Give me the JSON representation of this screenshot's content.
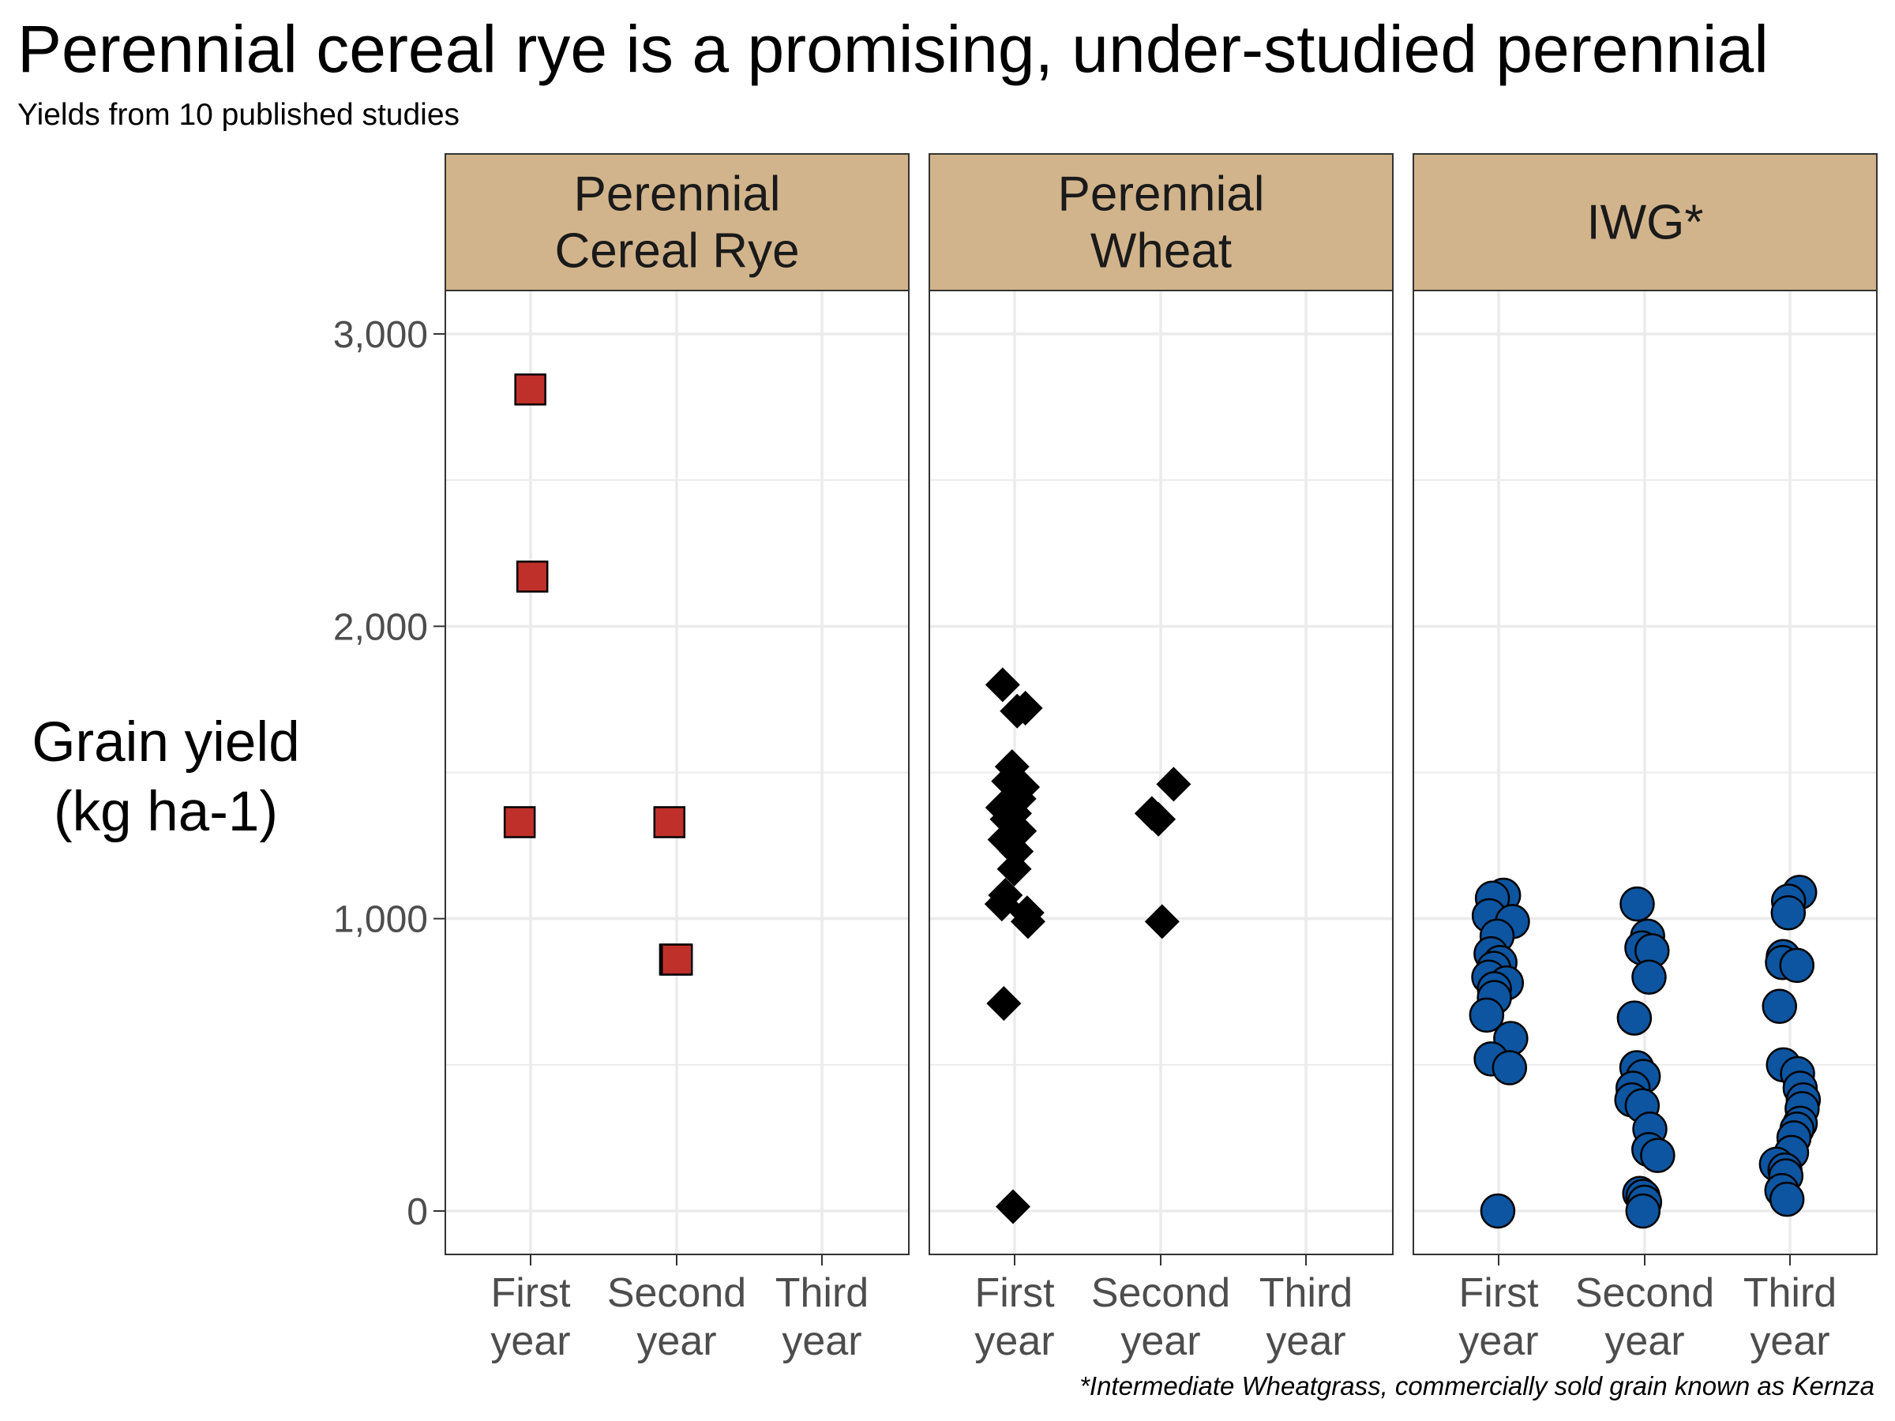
{
  "title": "Perennial cereal rye is a promising, under-studied perennial",
  "subtitle": "Yields from 10 published studies",
  "caption": "*Intermediate Wheatgrass, commercially sold grain known as Kernza",
  "colors": {
    "strip_fill": "#d2b48c",
    "rye": "#c0302a",
    "wheat": "#000000",
    "iwg": "#0d55a0",
    "grid": "#ebebeb",
    "border": "#333333",
    "tick_text": "#4d4d4d"
  },
  "chart_data": {
    "type": "scatter",
    "facet": "crop",
    "ylabel_lines": [
      "Grain yield",
      "(kg ha-1)"
    ],
    "ylim": [
      -150,
      3500
    ],
    "y_ticks": [
      0,
      1000,
      2000,
      3000
    ],
    "y_tick_labels": [
      "0",
      "1,000",
      "2,000",
      "3,000"
    ],
    "grid": true,
    "x_categories": [
      {
        "line1": "First",
        "line2": "year"
      },
      {
        "line1": "Second",
        "line2": "year"
      },
      {
        "line1": "Third",
        "line2": "year"
      }
    ],
    "panels": [
      {
        "strip_lines": [
          "Perennial",
          "Cereal Rye"
        ],
        "shape": "square",
        "color_key": "rye",
        "points": [
          {
            "x": "First year",
            "y": 2810
          },
          {
            "x": "First year",
            "y": 2170
          },
          {
            "x": "First year",
            "y": 1330
          },
          {
            "x": "Second year",
            "y": 1330
          },
          {
            "x": "Second year",
            "y": 860
          },
          {
            "x": "Second year",
            "y": 860
          }
        ]
      },
      {
        "strip_lines": [
          "Perennial",
          "Wheat"
        ],
        "shape": "diamond",
        "color_key": "wheat",
        "points": [
          {
            "x": "First year",
            "y": 1800
          },
          {
            "x": "First year",
            "y": 1720
          },
          {
            "x": "First year",
            "y": 1710
          },
          {
            "x": "First year",
            "y": 1520
          },
          {
            "x": "First year",
            "y": 1470
          },
          {
            "x": "First year",
            "y": 1450
          },
          {
            "x": "First year",
            "y": 1410
          },
          {
            "x": "First year",
            "y": 1380
          },
          {
            "x": "First year",
            "y": 1360
          },
          {
            "x": "First year",
            "y": 1340
          },
          {
            "x": "First year",
            "y": 1300
          },
          {
            "x": "First year",
            "y": 1270
          },
          {
            "x": "First year",
            "y": 1230
          },
          {
            "x": "First year",
            "y": 1170
          },
          {
            "x": "First year",
            "y": 1080
          },
          {
            "x": "First year",
            "y": 1050
          },
          {
            "x": "First year",
            "y": 1020
          },
          {
            "x": "First year",
            "y": 990
          },
          {
            "x": "First year",
            "y": 710
          },
          {
            "x": "First year",
            "y": 15
          },
          {
            "x": "Second year",
            "y": 1460
          },
          {
            "x": "Second year",
            "y": 1360
          },
          {
            "x": "Second year",
            "y": 1340
          },
          {
            "x": "Second year",
            "y": 990
          }
        ]
      },
      {
        "strip_lines": [
          "IWG*"
        ],
        "shape": "circle",
        "color_key": "iwg",
        "points": [
          {
            "x": "First year",
            "y": 1080
          },
          {
            "x": "First year",
            "y": 1070
          },
          {
            "x": "First year",
            "y": 1010
          },
          {
            "x": "First year",
            "y": 990
          },
          {
            "x": "First year",
            "y": 940
          },
          {
            "x": "First year",
            "y": 880
          },
          {
            "x": "First year",
            "y": 850
          },
          {
            "x": "First year",
            "y": 830
          },
          {
            "x": "First year",
            "y": 800
          },
          {
            "x": "First year",
            "y": 780
          },
          {
            "x": "First year",
            "y": 760
          },
          {
            "x": "First year",
            "y": 730
          },
          {
            "x": "First year",
            "y": 670
          },
          {
            "x": "First year",
            "y": 590
          },
          {
            "x": "First year",
            "y": 520
          },
          {
            "x": "First year",
            "y": 490
          },
          {
            "x": "First year",
            "y": 0
          },
          {
            "x": "Second year",
            "y": 1050
          },
          {
            "x": "Second year",
            "y": 940
          },
          {
            "x": "Second year",
            "y": 900
          },
          {
            "x": "Second year",
            "y": 890
          },
          {
            "x": "Second year",
            "y": 800
          },
          {
            "x": "Second year",
            "y": 660
          },
          {
            "x": "Second year",
            "y": 490
          },
          {
            "x": "Second year",
            "y": 460
          },
          {
            "x": "Second year",
            "y": 420
          },
          {
            "x": "Second year",
            "y": 380
          },
          {
            "x": "Second year",
            "y": 360
          },
          {
            "x": "Second year",
            "y": 280
          },
          {
            "x": "Second year",
            "y": 210
          },
          {
            "x": "Second year",
            "y": 190
          },
          {
            "x": "Second year",
            "y": 60
          },
          {
            "x": "Second year",
            "y": 50
          },
          {
            "x": "Second year",
            "y": 30
          },
          {
            "x": "Second year",
            "y": 0
          },
          {
            "x": "Third year",
            "y": 1090
          },
          {
            "x": "Third year",
            "y": 1060
          },
          {
            "x": "Third year",
            "y": 1020
          },
          {
            "x": "Third year",
            "y": 870
          },
          {
            "x": "Third year",
            "y": 850
          },
          {
            "x": "Third year",
            "y": 840
          },
          {
            "x": "Third year",
            "y": 700
          },
          {
            "x": "Third year",
            "y": 500
          },
          {
            "x": "Third year",
            "y": 470
          },
          {
            "x": "Third year",
            "y": 420
          },
          {
            "x": "Third year",
            "y": 380
          },
          {
            "x": "Third year",
            "y": 350
          },
          {
            "x": "Third year",
            "y": 300
          },
          {
            "x": "Third year",
            "y": 280
          },
          {
            "x": "Third year",
            "y": 250
          },
          {
            "x": "Third year",
            "y": 200
          },
          {
            "x": "Third year",
            "y": 160
          },
          {
            "x": "Third year",
            "y": 140
          },
          {
            "x": "Third year",
            "y": 120
          },
          {
            "x": "Third year",
            "y": 70
          },
          {
            "x": "Third year",
            "y": 40
          }
        ]
      }
    ]
  }
}
